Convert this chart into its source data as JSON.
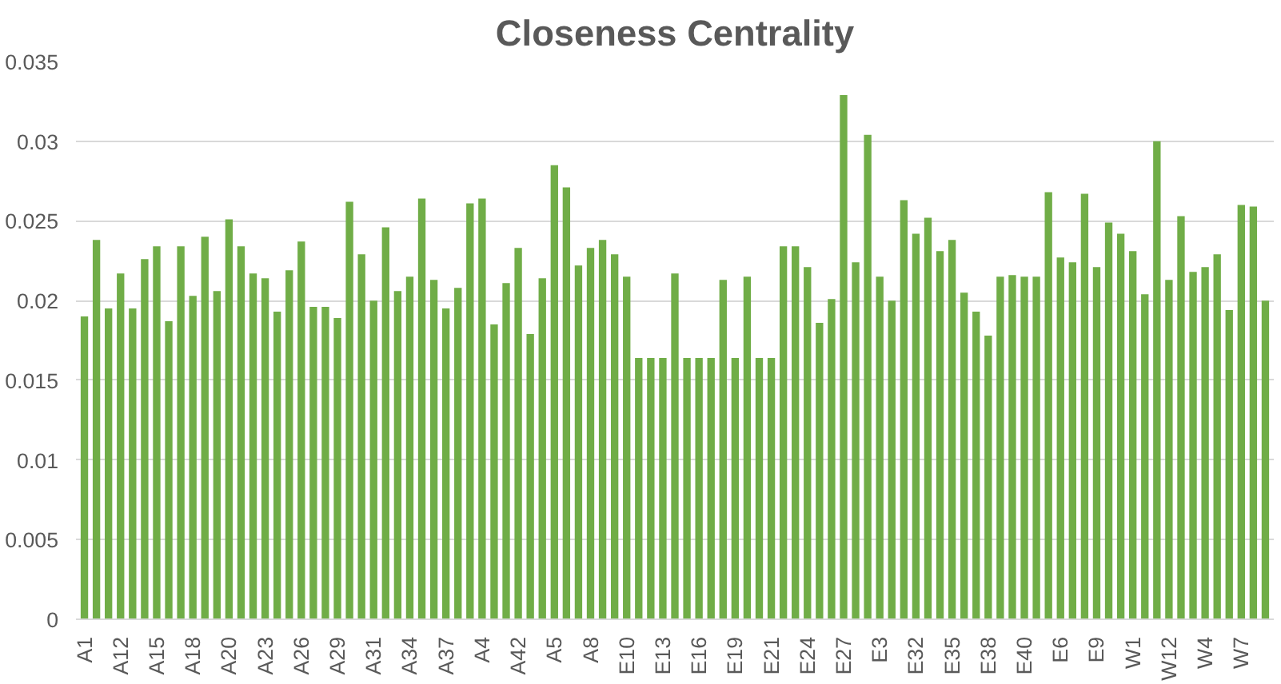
{
  "chart_data": {
    "type": "bar",
    "title": "Closeness Centrality",
    "categories": [
      "A1",
      null,
      null,
      "A12",
      null,
      null,
      "A15",
      null,
      null,
      "A18",
      null,
      null,
      "A20",
      null,
      null,
      "A23",
      null,
      null,
      "A26",
      null,
      null,
      "A29",
      null,
      null,
      "A31",
      null,
      null,
      "A34",
      null,
      null,
      "A37",
      null,
      null,
      "A4",
      null,
      null,
      "A42",
      null,
      null,
      "A5",
      null,
      null,
      "A8",
      null,
      null,
      "E10",
      null,
      null,
      "E13",
      null,
      null,
      "E16",
      null,
      null,
      "E19",
      null,
      null,
      "E21",
      null,
      null,
      "E24",
      null,
      null,
      "E27",
      null,
      null,
      "E3",
      null,
      null,
      "E32",
      null,
      null,
      "E35",
      null,
      null,
      "E38",
      null,
      null,
      "E40",
      null,
      null,
      "E6",
      null,
      null,
      "E9",
      null,
      null,
      "W1",
      null,
      null,
      "W12",
      null,
      null,
      "W4",
      null,
      null,
      "W7",
      null,
      null
    ],
    "values": [
      0.019,
      0.0238,
      0.0195,
      0.0217,
      0.0195,
      0.0226,
      0.0234,
      0.0187,
      0.0234,
      0.0203,
      0.024,
      0.0206,
      0.0251,
      0.0234,
      0.0217,
      0.0214,
      0.0193,
      0.0219,
      0.0237,
      0.0196,
      0.0196,
      0.0189,
      0.0262,
      0.0229,
      0.02,
      0.0246,
      0.0206,
      0.0215,
      0.0264,
      0.0213,
      0.0195,
      0.0208,
      0.0261,
      0.0264,
      0.0185,
      0.0211,
      0.0233,
      0.0179,
      0.0214,
      0.0285,
      0.0271,
      0.0222,
      0.0233,
      0.0238,
      0.0229,
      0.0215,
      0.0164,
      0.0164,
      0.0164,
      0.0217,
      0.0164,
      0.0164,
      0.0164,
      0.0213,
      0.0164,
      0.0215,
      0.0164,
      0.0164,
      0.0234,
      0.0234,
      0.0221,
      0.0186,
      0.0201,
      0.0329,
      0.0224,
      0.0304,
      0.0215,
      0.02,
      0.0263,
      0.0242,
      0.0252,
      0.0231,
      0.0238,
      0.0205,
      0.0193,
      0.0178,
      0.0215,
      0.0216,
      0.0215,
      0.0215,
      0.0268,
      0.0227,
      0.0224,
      0.0267,
      0.0221,
      0.0249,
      0.0242,
      0.0231,
      0.0204,
      0.03,
      0.0213,
      0.0253,
      0.0218,
      0.0221,
      0.0229,
      0.0194,
      0.026,
      0.0259,
      0.02
    ],
    "color": "#70ad47",
    "ylim": [
      0,
      0.035
    ],
    "yticks": [
      0,
      0.005,
      0.01,
      0.015,
      0.02,
      0.025,
      0.03,
      0.035
    ],
    "grid": "y"
  }
}
